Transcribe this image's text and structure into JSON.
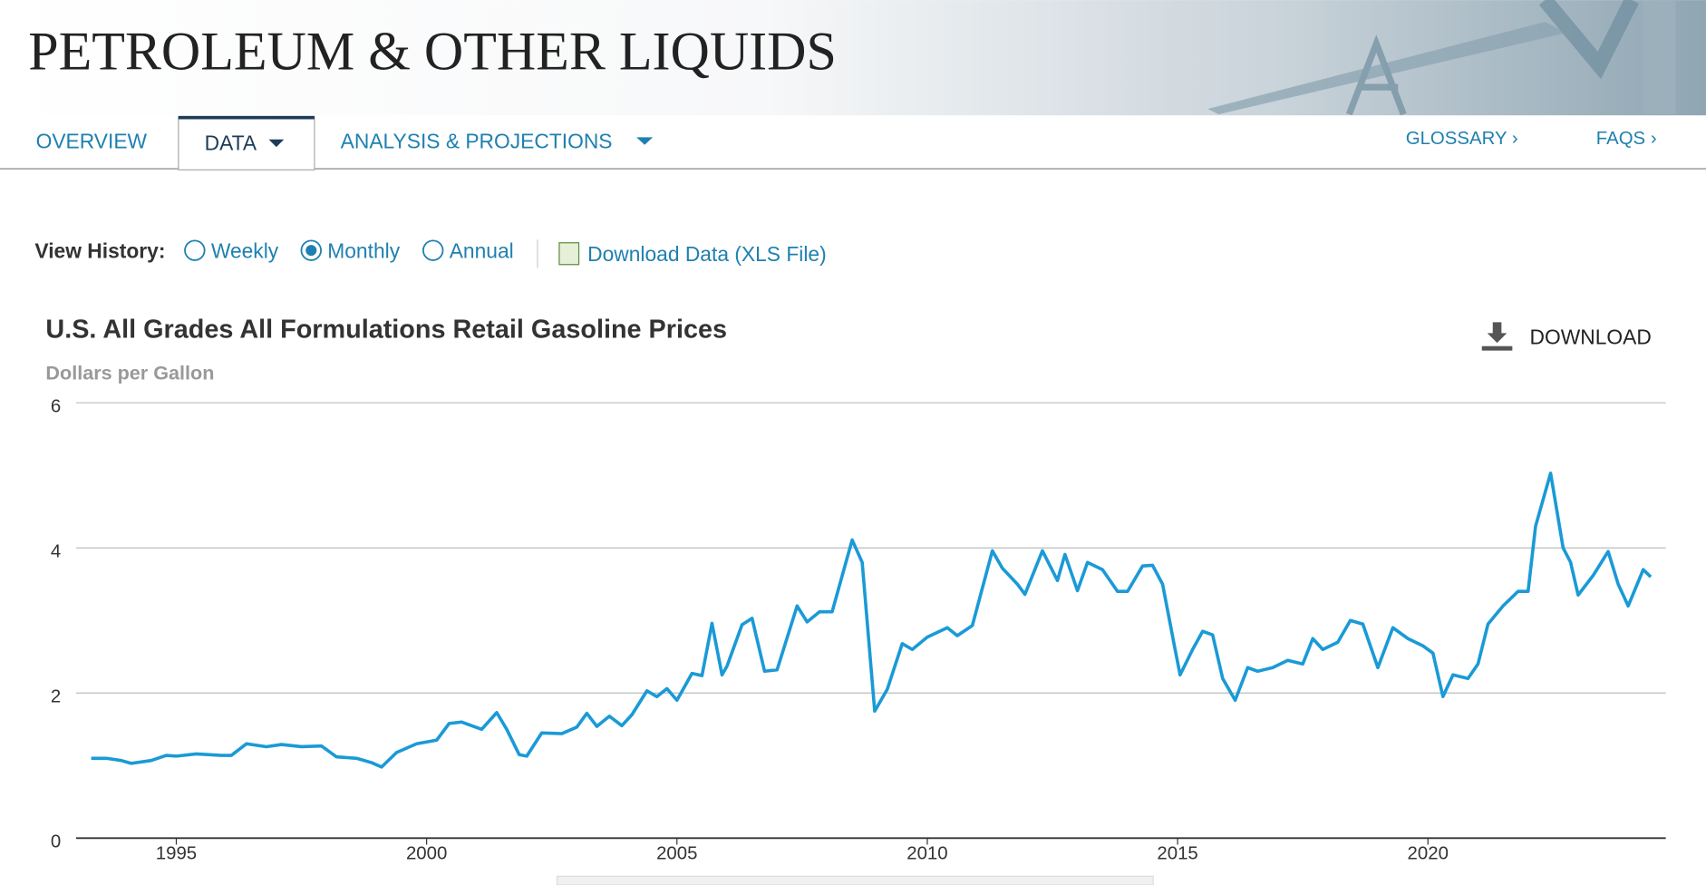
{
  "header": {
    "title": "PETROLEUM & OTHER LIQUIDS"
  },
  "nav": {
    "left": [
      "OVERVIEW",
      "DATA",
      "ANALYSIS & PROJECTIONS"
    ],
    "right": [
      "GLOSSARY ›",
      "FAQS ›"
    ]
  },
  "controls": {
    "label": "View History:",
    "options": [
      "Weekly",
      "Monthly",
      "Annual"
    ],
    "download_data": "Download Data (XLS File)"
  },
  "download": "DOWNLOAD",
  "chart_data": {
    "type": "line",
    "title": "U.S. All Grades All Formulations Retail Gasoline Prices",
    "subtitle": "Dollars per Gallon",
    "color": "#1a9ad6",
    "grid": true,
    "x": [
      1993.3,
      1993.6,
      1993.9,
      1994.1,
      1994.5,
      1994.8,
      1995.0,
      1995.4,
      1995.9,
      1996.1,
      1996.4,
      1996.8,
      1997.1,
      1997.5,
      1997.9,
      1998.2,
      1998.6,
      1998.9,
      1999.1,
      1999.4,
      1999.8,
      2000.2,
      2000.45,
      2000.7,
      2000.9,
      2001.1,
      2001.4,
      2001.6,
      2001.85,
      2002.0,
      2002.3,
      2002.7,
      2003.0,
      2003.2,
      2003.4,
      2003.65,
      2003.9,
      2004.1,
      2004.4,
      2004.6,
      2004.8,
      2005.0,
      2005.3,
      2005.5,
      2005.7,
      2005.9,
      2006.0,
      2006.3,
      2006.5,
      2006.75,
      2007.0,
      2007.4,
      2007.6,
      2007.85,
      2008.1,
      2008.5,
      2008.7,
      2008.95,
      2009.2,
      2009.5,
      2009.7,
      2010.0,
      2010.4,
      2010.6,
      2010.9,
      2011.3,
      2011.5,
      2011.8,
      2011.95,
      2012.3,
      2012.6,
      2012.75,
      2013.0,
      2013.2,
      2013.5,
      2013.8,
      2014.0,
      2014.3,
      2014.5,
      2014.7,
      2014.95,
      2015.05,
      2015.3,
      2015.5,
      2015.7,
      2015.9,
      2016.15,
      2016.4,
      2016.6,
      2016.9,
      2017.2,
      2017.5,
      2017.7,
      2017.9,
      2018.2,
      2018.45,
      2018.7,
      2019.0,
      2019.3,
      2019.6,
      2019.9,
      2020.1,
      2020.3,
      2020.5,
      2020.8,
      2021.0,
      2021.2,
      2021.5,
      2021.8,
      2022.0,
      2022.15,
      2022.45,
      2022.7,
      2022.85,
      2023.0,
      2023.3,
      2023.6,
      2023.8,
      2024.0,
      2024.3,
      2024.45
    ],
    "values": [
      1.1,
      1.1,
      1.07,
      1.03,
      1.07,
      1.14,
      1.13,
      1.16,
      1.14,
      1.14,
      1.3,
      1.26,
      1.29,
      1.26,
      1.27,
      1.12,
      1.1,
      1.04,
      0.98,
      1.18,
      1.3,
      1.35,
      1.58,
      1.6,
      1.55,
      1.5,
      1.73,
      1.5,
      1.15,
      1.13,
      1.45,
      1.44,
      1.53,
      1.72,
      1.54,
      1.68,
      1.55,
      1.7,
      2.03,
      1.95,
      2.06,
      1.9,
      2.27,
      2.24,
      2.96,
      2.25,
      2.37,
      2.94,
      3.03,
      2.3,
      2.32,
      3.2,
      2.98,
      3.12,
      3.12,
      4.11,
      3.8,
      1.75,
      2.05,
      2.68,
      2.6,
      2.77,
      2.9,
      2.79,
      2.93,
      3.96,
      3.72,
      3.5,
      3.36,
      3.96,
      3.55,
      3.91,
      3.41,
      3.8,
      3.7,
      3.4,
      3.4,
      3.75,
      3.76,
      3.5,
      2.6,
      2.25,
      2.6,
      2.85,
      2.8,
      2.2,
      1.9,
      2.35,
      2.3,
      2.35,
      2.45,
      2.4,
      2.75,
      2.6,
      2.7,
      3.0,
      2.95,
      2.35,
      2.9,
      2.75,
      2.65,
      2.55,
      1.95,
      2.25,
      2.2,
      2.4,
      2.95,
      3.2,
      3.4,
      3.4,
      4.3,
      5.03,
      4.0,
      3.8,
      3.35,
      3.62,
      3.95,
      3.5,
      3.2,
      3.7,
      3.6
    ],
    "xlim": [
      1993,
      2024.75
    ],
    "xticks": [
      1995,
      2000,
      2005,
      2010,
      2015,
      2020
    ],
    "ylim": [
      0,
      6
    ],
    "yticks": [
      0,
      2,
      4,
      6
    ]
  }
}
